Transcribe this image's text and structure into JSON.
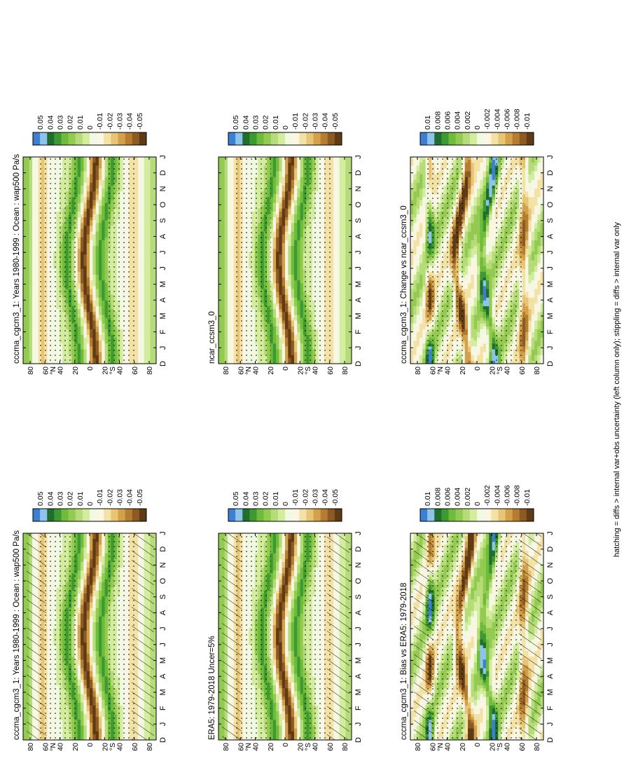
{
  "footnote": "hatching = diffs > internal var+obs uncertainty (left column only); stippling = diffs > internal var only",
  "colors": {
    "scale": [
      "#3d7fd1",
      "#8ec3ec",
      "#1f6e2e",
      "#3d9a32",
      "#6fbb3a",
      "#93cb52",
      "#b6dc7a",
      "#d4ec9e",
      "#f2f9e2",
      "#fbf6e4",
      "#f3e2a6",
      "#e7c575",
      "#d3a14b",
      "#b57d30",
      "#8c5a22",
      "#5e3a15"
    ]
  },
  "chart_data": [
    {
      "type": "heatmap",
      "title": "cccma_cgcm3_1: Years 1980-1999 : Ocean : wap500 Pa/s",
      "x_ticks": [
        "D",
        "J",
        "F",
        "M",
        "A",
        "M",
        "J",
        "J",
        "A",
        "S",
        "O",
        "N",
        "D",
        "J"
      ],
      "y_ticks": [
        "80",
        "60",
        "40",
        "20",
        "0",
        "20",
        "40",
        "60",
        "80"
      ],
      "y_labels": [
        "°N",
        "°S"
      ],
      "colorbar": [
        "0.05",
        "0.04",
        "0.03",
        "0.02",
        "0.01",
        "0",
        "-0.01",
        "-0.02",
        "-0.03",
        "-0.04",
        "-0.05"
      ],
      "hatching": true,
      "stippling": true
    },
    {
      "type": "heatmap",
      "title": "cccma_cgcm3_1: Years 1980-1999 : Ocean : wap500 Pa/s",
      "x_ticks": [
        "D",
        "J",
        "F",
        "M",
        "A",
        "M",
        "J",
        "J",
        "A",
        "S",
        "O",
        "N",
        "D",
        "J"
      ],
      "y_ticks": [
        "80",
        "60",
        "40",
        "20",
        "0",
        "20",
        "40",
        "60",
        "80"
      ],
      "y_labels": [
        "°N",
        "°S"
      ],
      "colorbar": [
        "0.05",
        "0.04",
        "0.03",
        "0.02",
        "0.01",
        "0",
        "-0.01",
        "-0.02",
        "-0.03",
        "-0.04",
        "-0.05"
      ],
      "hatching": false,
      "stippling": true
    },
    {
      "type": "heatmap",
      "title": "ERA5: 1979-2018 Uncer=5%",
      "x_ticks": [
        "D",
        "J",
        "F",
        "M",
        "A",
        "M",
        "J",
        "J",
        "A",
        "S",
        "O",
        "N",
        "D",
        "J"
      ],
      "y_ticks": [
        "80",
        "60",
        "40",
        "20",
        "0",
        "20",
        "40",
        "60",
        "80"
      ],
      "y_labels": [
        "°N",
        "°S"
      ],
      "colorbar": [
        "0.05",
        "0.04",
        "0.03",
        "0.02",
        "0.01",
        "0",
        "-0.01",
        "-0.02",
        "-0.03",
        "-0.04",
        "-0.05"
      ],
      "hatching": true,
      "stippling": true
    },
    {
      "type": "heatmap",
      "title": "ncar_ccsm3_0",
      "x_ticks": [
        "D",
        "J",
        "F",
        "M",
        "A",
        "M",
        "J",
        "J",
        "A",
        "S",
        "O",
        "N",
        "D",
        "J"
      ],
      "y_ticks": [
        "80",
        "60",
        "40",
        "20",
        "0",
        "20",
        "40",
        "60",
        "80"
      ],
      "y_labels": [
        "°N",
        "°S"
      ],
      "colorbar": [
        "0.05",
        "0.04",
        "0.03",
        "0.02",
        "0.01",
        "0",
        "-0.01",
        "-0.02",
        "-0.03",
        "-0.04",
        "-0.05"
      ],
      "hatching": false,
      "stippling": true
    },
    {
      "type": "heatmap",
      "title": "cccma_cgcm3_1: Bias vs ERA5: 1979-2018",
      "x_ticks": [
        "D",
        "J",
        "F",
        "M",
        "A",
        "M",
        "J",
        "J",
        "A",
        "S",
        "O",
        "N",
        "D",
        "J"
      ],
      "y_ticks": [
        "80",
        "60",
        "40",
        "20",
        "0",
        "20",
        "40",
        "60",
        "80"
      ],
      "y_labels": [
        "°N",
        "°S"
      ],
      "colorbar": [
        "0.01",
        "0.008",
        "0.006",
        "0.004",
        "0.002",
        "0",
        "-0.002",
        "-0.004",
        "-0.006",
        "-0.008",
        "-0.01"
      ],
      "hatching": true,
      "stippling": true
    },
    {
      "type": "heatmap",
      "title": "cccma_cgcm3_1: Change vs ncar_ccsm3_0",
      "x_ticks": [
        "D",
        "J",
        "F",
        "M",
        "A",
        "M",
        "J",
        "J",
        "A",
        "S",
        "O",
        "N",
        "D",
        "J"
      ],
      "y_ticks": [
        "80",
        "60",
        "40",
        "20",
        "0",
        "20",
        "40",
        "60",
        "80"
      ],
      "y_labels": [
        "°N",
        "°S"
      ],
      "colorbar": [
        "0.01",
        "0.008",
        "0.006",
        "0.004",
        "0.002",
        "0",
        "-0.002",
        "-0.004",
        "-0.006",
        "-0.008",
        "-0.01"
      ],
      "hatching": false,
      "stippling": true
    }
  ]
}
